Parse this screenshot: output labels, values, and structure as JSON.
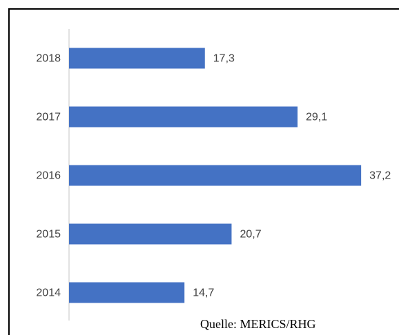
{
  "chart_data": {
    "type": "bar",
    "orientation": "horizontal",
    "categories": [
      "2018",
      "2017",
      "2016",
      "2015",
      "2014"
    ],
    "values": [
      17.3,
      29.1,
      37.2,
      20.7,
      14.7
    ],
    "value_labels": [
      "17,3",
      "29,1",
      "37,2",
      "20,7",
      "14,7"
    ],
    "color": "#4472c4",
    "xlim": [
      0,
      40
    ],
    "annotation": "Quelle: MERICS/RHG"
  }
}
